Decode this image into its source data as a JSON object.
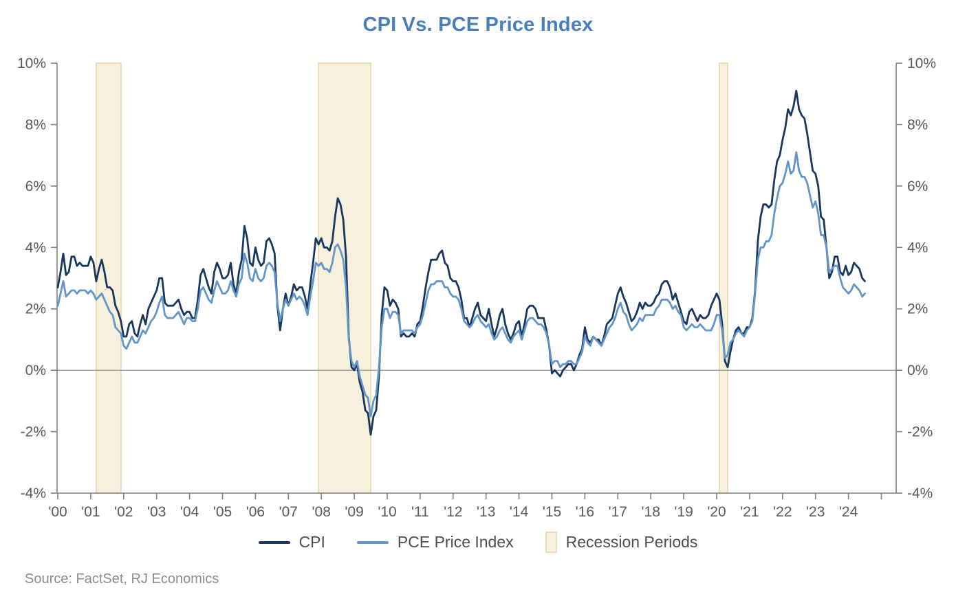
{
  "title": "CPI Vs. PCE Price Index",
  "source": "Source: FactSet, RJ Economics",
  "legend": [
    {
      "id": "cpi",
      "label": "CPI"
    },
    {
      "id": "pce",
      "label": "PCE Price Index"
    },
    {
      "id": "recession",
      "label": "Recession Periods"
    }
  ],
  "colors": {
    "cpi": "#17375e",
    "pce": "#6495c8",
    "recession_fill": "#f7f0dc",
    "recession_border": "#eaddb6",
    "title": "#4a7ebb",
    "axis": "#7f7f7f",
    "tick_label": "#595959",
    "zero_line": "#9d9d9d",
    "legend_text": "#4d4d4d",
    "source_text": "#8c8c8c"
  },
  "chart_data": {
    "type": "line",
    "title": "CPI Vs. PCE Price Index",
    "grid": "zero-line-only",
    "legend_position": "bottom",
    "y_axis": {
      "range": [
        -4,
        10
      ],
      "tick_values": [
        10,
        8,
        6,
        4,
        2,
        0,
        -2,
        -4
      ],
      "tick_labels": [
        "10%",
        "8%",
        "6%",
        "4%",
        "2%",
        "0%",
        "-2%",
        "-4%"
      ],
      "sides": "both",
      "format": "percent"
    },
    "x_axis": {
      "tick_years": [
        2000,
        2001,
        2002,
        2003,
        2004,
        2005,
        2006,
        2007,
        2008,
        2009,
        2010,
        2011,
        2012,
        2013,
        2014,
        2015,
        2016,
        2017,
        2018,
        2019,
        2020,
        2021,
        2022,
        2023,
        2024
      ],
      "tick_labels": [
        "'00",
        "'01",
        "'02",
        "'03",
        "'04",
        "'05",
        "'06",
        "'07",
        "'08",
        "'09",
        "'10",
        "'11",
        "'12",
        "'13",
        "'14",
        "'15",
        "'16",
        "'17",
        "'18",
        "'19",
        "'20",
        "'21",
        "'22",
        "'23",
        "'24"
      ],
      "extra_tick_years": [
        2025
      ],
      "range_years": [
        2000,
        2025.5
      ]
    },
    "recession_periods": [
      {
        "start": "2001-03",
        "end": "2001-11"
      },
      {
        "start": "2007-12",
        "end": "2009-06"
      },
      {
        "start": "2020-02",
        "end": "2020-04"
      }
    ],
    "series": [
      {
        "name": "CPI",
        "color_key": "cpi",
        "start": "2000-01",
        "frequency": "monthly",
        "unit": "% YoY",
        "values": [
          2.7,
          3.2,
          3.8,
          3.1,
          3.2,
          3.7,
          3.7,
          3.4,
          3.5,
          3.4,
          3.4,
          3.4,
          3.7,
          3.5,
          2.9,
          3.3,
          3.6,
          3.2,
          2.7,
          2.7,
          2.6,
          2.1,
          1.9,
          1.6,
          1.1,
          1.1,
          1.5,
          1.6,
          1.2,
          1.1,
          1.5,
          1.8,
          1.5,
          2.0,
          2.2,
          2.4,
          2.6,
          3.0,
          3.0,
          2.2,
          2.1,
          2.1,
          2.1,
          2.2,
          2.3,
          2.0,
          1.8,
          1.9,
          1.9,
          1.7,
          1.7,
          2.3,
          3.1,
          3.3,
          3.0,
          2.7,
          2.5,
          3.2,
          3.5,
          3.3,
          3.0,
          3.0,
          3.1,
          3.5,
          2.8,
          2.5,
          3.2,
          3.6,
          4.7,
          4.3,
          3.5,
          3.4,
          4.0,
          3.6,
          3.4,
          3.5,
          4.2,
          4.3,
          4.1,
          3.8,
          2.1,
          1.3,
          2.0,
          2.5,
          2.1,
          2.4,
          2.8,
          2.6,
          2.7,
          2.7,
          2.4,
          2.0,
          2.8,
          3.5,
          4.3,
          4.1,
          4.3,
          4.0,
          4.0,
          3.9,
          4.2,
          5.0,
          5.6,
          5.4,
          4.9,
          3.7,
          1.1,
          0.1,
          0.0,
          0.2,
          -0.4,
          -0.7,
          -1.3,
          -1.4,
          -2.1,
          -1.5,
          -1.3,
          -0.2,
          1.8,
          2.7,
          2.6,
          2.1,
          2.3,
          2.2,
          2.0,
          1.1,
          1.2,
          1.1,
          1.1,
          1.2,
          1.1,
          1.5,
          1.6,
          2.1,
          2.7,
          3.2,
          3.6,
          3.6,
          3.6,
          3.8,
          3.9,
          3.5,
          3.4,
          3.0,
          2.9,
          2.9,
          2.7,
          2.3,
          1.7,
          1.7,
          1.4,
          1.7,
          2.0,
          2.2,
          1.8,
          1.7,
          1.6,
          2.0,
          1.5,
          1.1,
          1.4,
          1.8,
          2.0,
          1.5,
          1.2,
          1.0,
          1.2,
          1.5,
          1.6,
          1.1,
          1.5,
          2.0,
          2.1,
          2.1,
          2.0,
          1.7,
          1.7,
          1.7,
          1.3,
          0.8,
          -0.1,
          0.0,
          -0.1,
          -0.2,
          0.0,
          0.1,
          0.2,
          0.2,
          0.0,
          0.2,
          0.5,
          0.7,
          1.4,
          1.0,
          0.9,
          1.1,
          1.0,
          1.0,
          0.8,
          1.1,
          1.5,
          1.6,
          1.7,
          2.1,
          2.5,
          2.7,
          2.4,
          2.2,
          1.9,
          1.6,
          1.7,
          1.9,
          2.2,
          2.0,
          2.2,
          2.1,
          2.1,
          2.2,
          2.4,
          2.5,
          2.8,
          2.9,
          2.9,
          2.7,
          2.3,
          2.5,
          2.2,
          1.9,
          1.6,
          1.5,
          1.9,
          2.0,
          1.8,
          1.6,
          1.8,
          1.7,
          1.7,
          1.8,
          2.1,
          2.3,
          2.5,
          2.3,
          1.5,
          0.3,
          0.1,
          0.6,
          1.0,
          1.3,
          1.4,
          1.2,
          1.2,
          1.4,
          1.4,
          1.7,
          2.6,
          4.2,
          5.0,
          5.4,
          5.4,
          5.3,
          5.4,
          6.2,
          6.8,
          7.0,
          7.5,
          7.9,
          8.5,
          8.3,
          8.6,
          9.1,
          8.5,
          8.3,
          8.2,
          7.7,
          7.1,
          6.5,
          6.4,
          6.0,
          5.0,
          4.9,
          4.0,
          3.0,
          3.2,
          3.7,
          3.7,
          3.2,
          3.1,
          3.4,
          3.1,
          3.2,
          3.5,
          3.4,
          3.3,
          3.0,
          2.9
        ]
      },
      {
        "name": "PCE Price Index",
        "color_key": "pce",
        "start": "2000-01",
        "frequency": "monthly",
        "unit": "% YoY",
        "values": [
          2.1,
          2.5,
          2.9,
          2.4,
          2.5,
          2.6,
          2.6,
          2.5,
          2.6,
          2.6,
          2.6,
          2.5,
          2.6,
          2.5,
          2.3,
          2.4,
          2.5,
          2.3,
          2.1,
          1.9,
          1.8,
          1.4,
          1.3,
          1.2,
          0.8,
          0.7,
          0.9,
          1.1,
          0.9,
          0.9,
          1.1,
          1.3,
          1.2,
          1.4,
          1.6,
          1.7,
          1.9,
          2.2,
          2.4,
          1.8,
          1.7,
          1.7,
          1.7,
          1.8,
          1.9,
          1.7,
          1.5,
          1.7,
          1.7,
          1.6,
          1.6,
          2.0,
          2.6,
          2.7,
          2.5,
          2.3,
          2.2,
          2.6,
          2.9,
          2.7,
          2.5,
          2.5,
          2.6,
          2.9,
          2.6,
          2.4,
          2.8,
          3.0,
          3.8,
          3.5,
          3.0,
          2.9,
          3.3,
          3.0,
          2.9,
          3.0,
          3.4,
          3.5,
          3.4,
          3.2,
          2.2,
          1.6,
          2.0,
          2.3,
          2.1,
          2.3,
          2.5,
          2.3,
          2.4,
          2.3,
          2.1,
          1.8,
          2.4,
          2.9,
          3.5,
          3.4,
          3.5,
          3.3,
          3.3,
          3.2,
          3.5,
          4.0,
          4.1,
          3.9,
          3.6,
          2.7,
          1.0,
          0.3,
          0.1,
          0.3,
          -0.2,
          -0.5,
          -0.8,
          -0.9,
          -1.5,
          -1.0,
          -0.8,
          0.1,
          1.4,
          2.0,
          2.0,
          1.7,
          1.9,
          1.9,
          1.8,
          1.2,
          1.3,
          1.3,
          1.3,
          1.3,
          1.2,
          1.4,
          1.5,
          1.8,
          2.2,
          2.6,
          2.8,
          2.8,
          2.9,
          2.9,
          2.9,
          2.7,
          2.7,
          2.5,
          2.4,
          2.4,
          2.3,
          2.0,
          1.6,
          1.5,
          1.4,
          1.5,
          1.7,
          1.8,
          1.6,
          1.5,
          1.4,
          1.5,
          1.2,
          1.0,
          1.1,
          1.3,
          1.4,
          1.2,
          1.0,
          0.9,
          1.1,
          1.2,
          1.3,
          1.0,
          1.3,
          1.6,
          1.7,
          1.7,
          1.6,
          1.5,
          1.5,
          1.4,
          1.2,
          0.8,
          0.2,
          0.3,
          0.3,
          0.1,
          0.2,
          0.2,
          0.3,
          0.3,
          0.2,
          0.2,
          0.4,
          0.6,
          1.1,
          0.9,
          0.8,
          1.1,
          1.0,
          0.9,
          0.8,
          1.0,
          1.2,
          1.4,
          1.5,
          1.7,
          2.0,
          2.2,
          1.9,
          1.8,
          1.5,
          1.3,
          1.4,
          1.5,
          1.7,
          1.6,
          1.8,
          1.8,
          1.8,
          1.8,
          2.0,
          2.1,
          2.3,
          2.3,
          2.3,
          2.2,
          2.0,
          2.1,
          1.9,
          1.8,
          1.4,
          1.3,
          1.4,
          1.5,
          1.4,
          1.4,
          1.5,
          1.4,
          1.3,
          1.3,
          1.3,
          1.5,
          1.8,
          1.8,
          1.3,
          0.4,
          0.5,
          0.9,
          1.0,
          1.2,
          1.3,
          1.2,
          1.1,
          1.3,
          1.4,
          1.6,
          2.5,
          3.6,
          4.0,
          4.0,
          4.2,
          4.2,
          4.4,
          5.1,
          5.6,
          6.0,
          6.1,
          6.4,
          6.8,
          6.4,
          6.5,
          7.1,
          6.5,
          6.3,
          6.3,
          6.1,
          5.7,
          5.3,
          5.5,
          5.1,
          4.4,
          4.4,
          4.0,
          3.2,
          3.3,
          3.4,
          3.4,
          3.0,
          2.7,
          2.6,
          2.5,
          2.6,
          2.8,
          2.7,
          2.6,
          2.4,
          2.5
        ]
      }
    ]
  }
}
